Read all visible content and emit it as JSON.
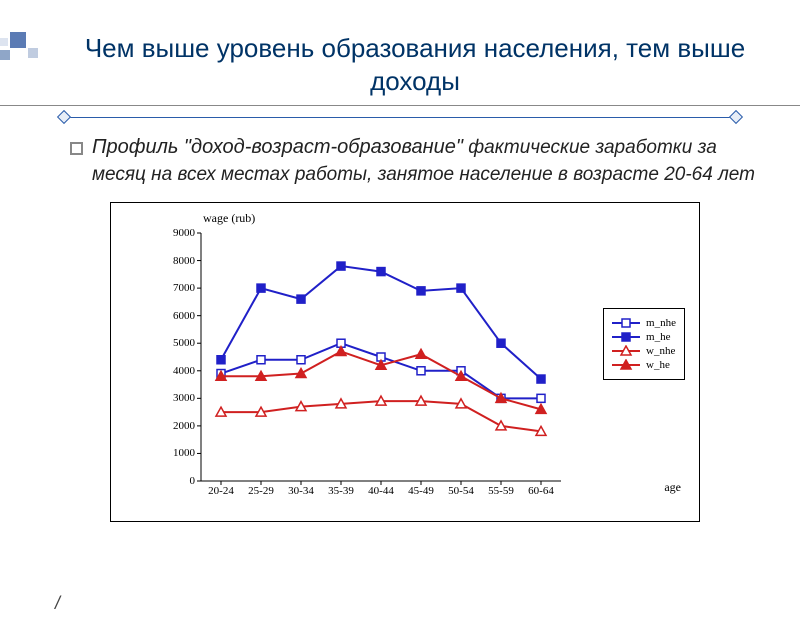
{
  "title": "Чем выше уровень образования населения, тем выше доходы",
  "bullet_title": "Профиль \"доход-возраст-образование\"",
  "bullet_desc": " фактические заработки за месяц на всех местах работы, занятое население в возрасте 20-64 лет",
  "footer_mark": "/",
  "chart": {
    "type": "line",
    "ytitle": "wage (rub)",
    "xtitle": "age",
    "categories": [
      "20-24",
      "25-29",
      "30-34",
      "35-39",
      "40-44",
      "45-49",
      "50-54",
      "55-59",
      "60-64"
    ],
    "ylim": [
      0,
      9000
    ],
    "ytick_step": 1000,
    "plot_bg": "#ffffff",
    "series": [
      {
        "key": "m_nhe",
        "label": "m_nhe",
        "color": "#2020c8",
        "marker": "square-open",
        "values": [
          3900,
          4400,
          4400,
          5000,
          4500,
          4000,
          4000,
          3000,
          3000
        ]
      },
      {
        "key": "m_he",
        "label": "m_he",
        "color": "#2020c8",
        "marker": "square-filled",
        "values": [
          4400,
          7000,
          6600,
          7800,
          7600,
          6900,
          7000,
          5000,
          3700
        ]
      },
      {
        "key": "w_nhe",
        "label": "w_nhe",
        "color": "#d02020",
        "marker": "triangle-open",
        "values": [
          2500,
          2500,
          2700,
          2800,
          2900,
          2900,
          2800,
          2000,
          1800
        ]
      },
      {
        "key": "w_he",
        "label": "w_he",
        "color": "#d02020",
        "marker": "triangle-filled",
        "values": [
          3800,
          3800,
          3900,
          4700,
          4200,
          4600,
          3800,
          3000,
          2600
        ]
      }
    ],
    "grid_color": "#000000",
    "font": "Times New Roman"
  }
}
